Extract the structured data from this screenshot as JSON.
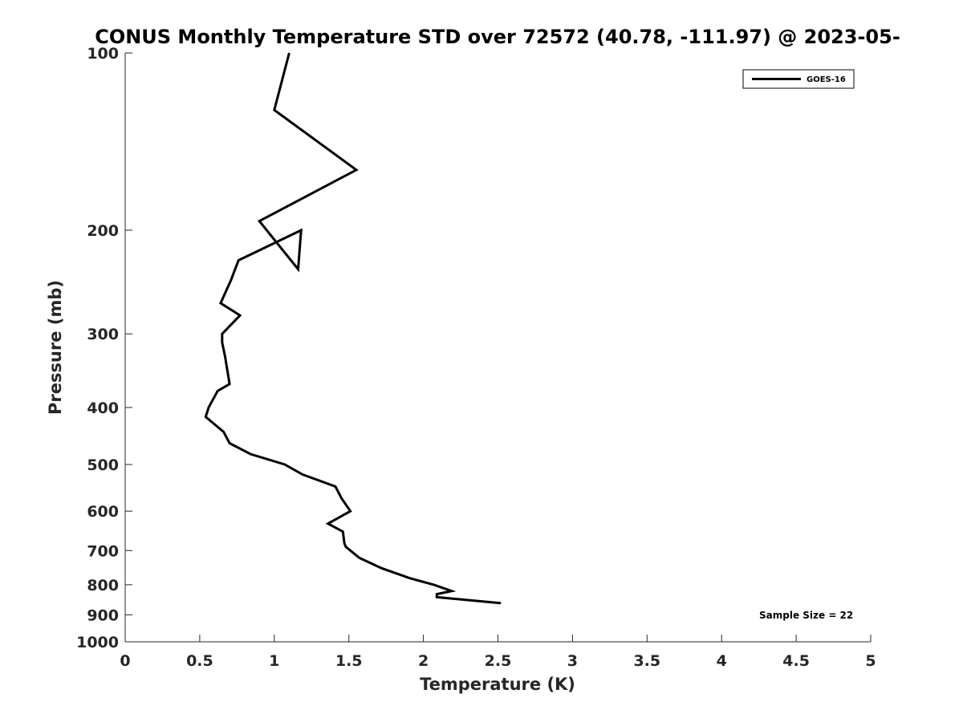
{
  "chart_data": {
    "type": "line",
    "title": "CONUS Monthly Temperature STD over 72572 (40.78, -111.97) @ 2023-05-",
    "xlabel": "Temperature (K)",
    "ylabel": "Pressure (mb)",
    "xlim": [
      0,
      5
    ],
    "ylim": [
      100,
      1000
    ],
    "y_scale": "log",
    "y_reversed": true,
    "x_ticks": [
      0,
      0.5,
      1,
      1.5,
      2,
      2.5,
      3,
      3.5,
      4,
      4.5,
      5
    ],
    "x_tick_labels": [
      "0",
      "0.5",
      "1",
      "1.5",
      "2",
      "2.5",
      "3",
      "3.5",
      "4",
      "4.5",
      "5"
    ],
    "y_ticks": [
      100,
      200,
      300,
      400,
      500,
      600,
      700,
      800,
      900,
      1000
    ],
    "y_tick_labels": [
      "100",
      "200",
      "300",
      "400",
      "500",
      "600",
      "700",
      "800",
      "900",
      "1000"
    ],
    "grid": false,
    "legend_position": "top-right",
    "series": [
      {
        "name": "GOES-16",
        "color": "#000000",
        "x": [
          1.1,
          1.0,
          1.55,
          0.9,
          1.16,
          1.18,
          0.76,
          0.71,
          0.64,
          0.77,
          0.65,
          0.65,
          0.67,
          0.7,
          0.62,
          0.56,
          0.54,
          0.66,
          0.7,
          0.84,
          1.07,
          1.19,
          1.41,
          1.45,
          1.51,
          1.36,
          1.46,
          1.47,
          1.48,
          1.57,
          1.72,
          1.91,
          2.07,
          2.19,
          2.09,
          2.09,
          2.52
        ],
        "y": [
          100,
          125,
          158,
          193,
          233,
          200,
          225,
          243,
          266,
          279,
          300,
          310,
          328,
          365,
          375,
          400,
          415,
          440,
          460,
          480,
          500,
          520,
          545,
          570,
          600,
          630,
          650,
          680,
          690,
          720,
          750,
          780,
          800,
          820,
          830,
          840,
          860
        ]
      }
    ],
    "annotations": [
      "Sample Size = 22"
    ]
  }
}
